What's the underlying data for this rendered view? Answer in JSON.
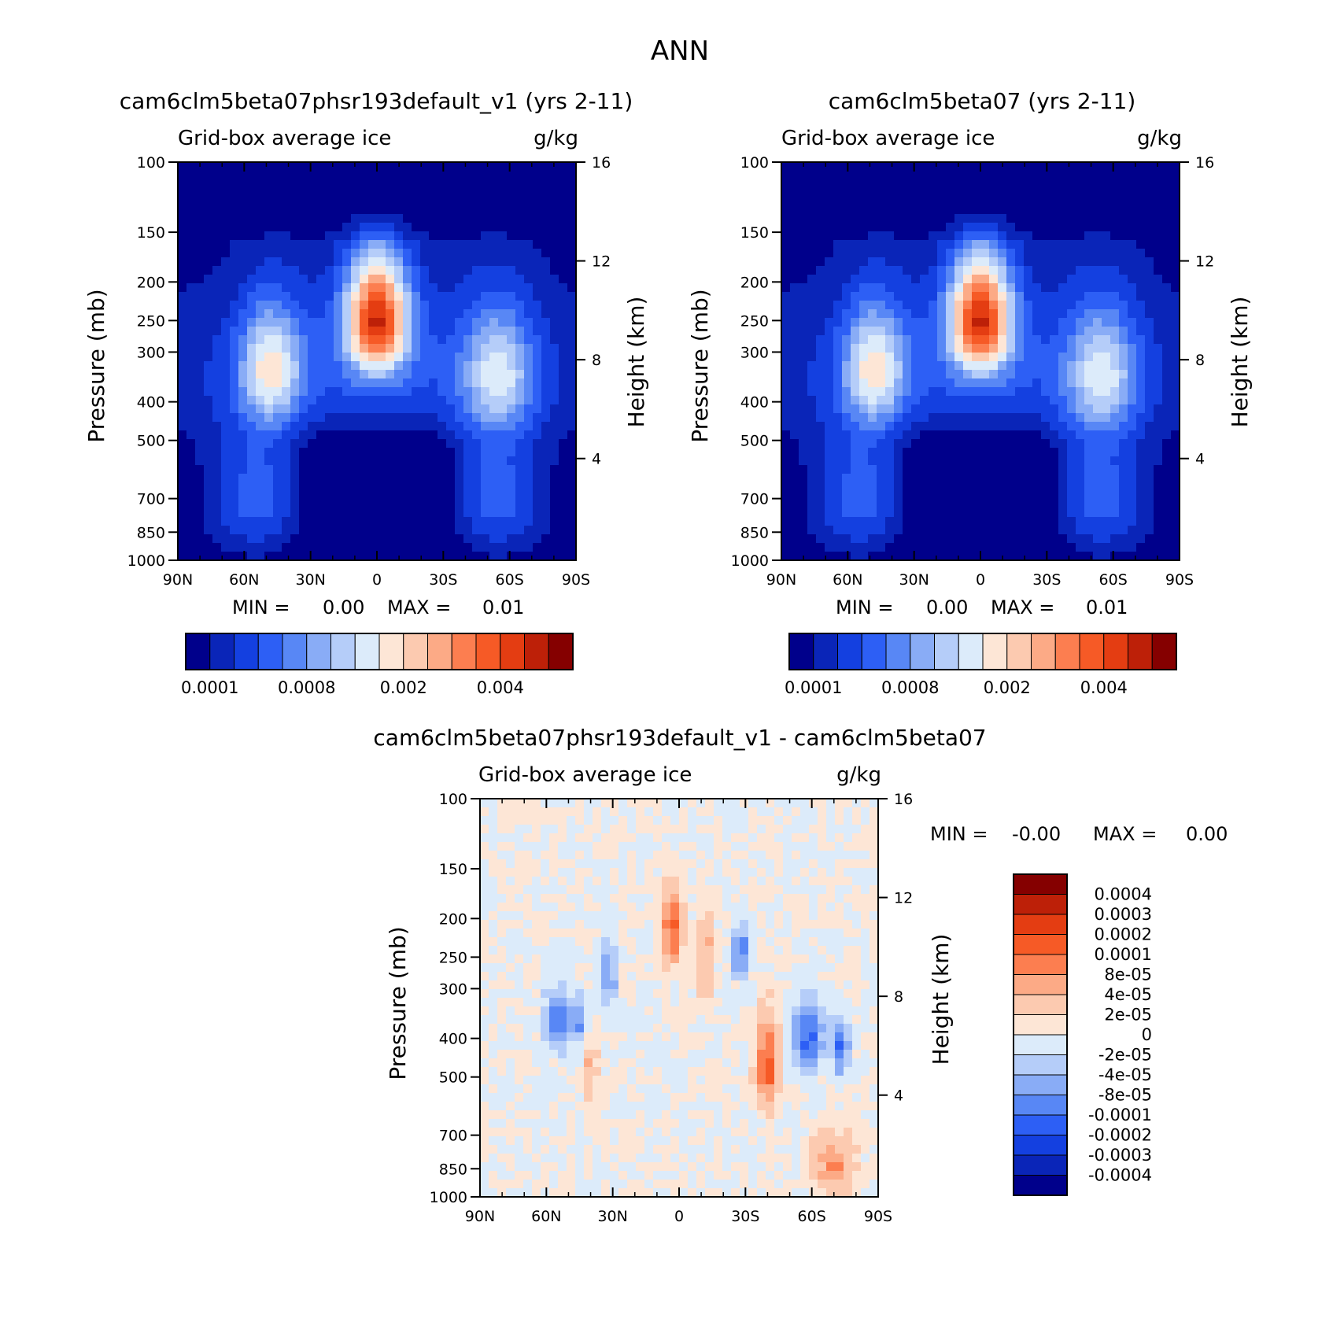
{
  "figure": {
    "title": "ANN"
  },
  "panels": {
    "test": {
      "title": "cam6clm5beta07phsr193default_v1 (yrs 2-11)",
      "variable": "Grid-box average ice",
      "units": "g/kg",
      "ylabel": "Pressure (mb)",
      "ylabel2": "Height (km)",
      "min_label": "MIN =",
      "min_value": "0.00",
      "max_label": "MAX =",
      "max_value": "0.01"
    },
    "ctrl": {
      "title": "cam6clm5beta07 (yrs 2-11)",
      "variable": "Grid-box average ice",
      "units": "g/kg",
      "ylabel": "Pressure (mb)",
      "ylabel2": "Height (km)",
      "min_label": "MIN =",
      "min_value": "0.00",
      "max_label": "MAX =",
      "max_value": "0.01"
    },
    "diff": {
      "title": "cam6clm5beta07phsr193default_v1 - cam6clm5beta07",
      "variable": "Grid-box average ice",
      "units": "g/kg",
      "ylabel": "Pressure (mb)",
      "ylabel2": "Height (km)",
      "min_label": "MIN =",
      "min_value": "-0.00",
      "max_label": "MAX =",
      "max_value": "0.00"
    }
  },
  "chart_data": [
    {
      "type": "contour",
      "panel": "test",
      "title": "cam6clm5beta07phsr193default_v1 (yrs 2-11)",
      "x_ticks": [
        "90N",
        "60N",
        "30N",
        "0",
        "30S",
        "60S",
        "90S"
      ],
      "x_values": [
        90,
        60,
        30,
        0,
        -30,
        -60,
        -90
      ],
      "y_ticks": [
        "100",
        "150",
        "200",
        "250",
        "300",
        "400",
        "500",
        "700",
        "850",
        "1000"
      ],
      "y_values": [
        100,
        150,
        200,
        250,
        300,
        400,
        500,
        700,
        850,
        1000
      ],
      "y2_ticks": [
        "16",
        "12",
        "8",
        "4"
      ],
      "y2_values": [
        16,
        12,
        8,
        4
      ],
      "colorbar_labels": [
        "0.0001",
        "0.0008",
        "0.002",
        "0.004"
      ],
      "colors": [
        "#00008b",
        "#0a25b8",
        "#1440e0",
        "#2d5ff5",
        "#5887f5",
        "#89acf6",
        "#b5cdf9",
        "#dcebfa",
        "#fde6d6",
        "#fccab0",
        "#fcaa86",
        "#fc7e50",
        "#f65a26",
        "#e43d12",
        "#bd2008",
        "#850000"
      ],
      "blobs": [
        {
          "lat": 0,
          "p": 245,
          "sx": 14,
          "sy": 85,
          "v": 0.75
        },
        {
          "lat": 48,
          "p": 330,
          "sx": 14,
          "sy": 110,
          "v": 0.38
        },
        {
          "lat": -55,
          "p": 340,
          "sx": 16,
          "sy": 120,
          "v": 0.32
        }
      ]
    },
    {
      "type": "contour",
      "panel": "ctrl",
      "title": "cam6clm5beta07 (yrs 2-11)",
      "x_ticks": [
        "90N",
        "60N",
        "30N",
        "0",
        "30S",
        "60S",
        "90S"
      ],
      "x_values": [
        90,
        60,
        30,
        0,
        -30,
        -60,
        -90
      ],
      "y_ticks": [
        "100",
        "150",
        "200",
        "250",
        "300",
        "400",
        "500",
        "700",
        "850",
        "1000"
      ],
      "y_values": [
        100,
        150,
        200,
        250,
        300,
        400,
        500,
        700,
        850,
        1000
      ],
      "y2_ticks": [
        "16",
        "12",
        "8",
        "4"
      ],
      "y2_values": [
        16,
        12,
        8,
        4
      ],
      "colorbar_labels": [
        "0.0001",
        "0.0008",
        "0.002",
        "0.004"
      ],
      "colors": [
        "#00008b",
        "#0a25b8",
        "#1440e0",
        "#2d5ff5",
        "#5887f5",
        "#89acf6",
        "#b5cdf9",
        "#dcebfa",
        "#fde6d6",
        "#fccab0",
        "#fcaa86",
        "#fc7e50",
        "#f65a26",
        "#e43d12",
        "#bd2008",
        "#850000"
      ],
      "blobs": [
        {
          "lat": 0,
          "p": 245,
          "sx": 14,
          "sy": 85,
          "v": 0.75
        },
        {
          "lat": 48,
          "p": 330,
          "sx": 14,
          "sy": 110,
          "v": 0.38
        },
        {
          "lat": -55,
          "p": 340,
          "sx": 16,
          "sy": 120,
          "v": 0.32
        }
      ]
    },
    {
      "type": "contour",
      "panel": "diff",
      "title": "cam6clm5beta07phsr193default_v1 - cam6clm5beta07",
      "x_ticks": [
        "90N",
        "60N",
        "30N",
        "0",
        "30S",
        "60S",
        "90S"
      ],
      "x_values": [
        90,
        60,
        30,
        0,
        -30,
        -60,
        -90
      ],
      "y_ticks": [
        "100",
        "150",
        "200",
        "250",
        "300",
        "400",
        "500",
        "700",
        "850",
        "1000"
      ],
      "y_values": [
        100,
        150,
        200,
        250,
        300,
        400,
        500,
        700,
        850,
        1000
      ],
      "y2_ticks": [
        "16",
        "12",
        "8",
        "4"
      ],
      "y2_values": [
        16,
        12,
        8,
        4
      ],
      "colorbar_labels": [
        "0.0004",
        "0.0003",
        "0.0002",
        "0.0001",
        "8e-05",
        "4e-05",
        "2e-05",
        "0",
        "-2e-05",
        "-4e-05",
        "-8e-05",
        "-0.0001",
        "-0.0002",
        "-0.0003",
        "-0.0004"
      ],
      "colors": [
        "#850000",
        "#bd2008",
        "#e43d12",
        "#f65a26",
        "#fc7e50",
        "#fcaa86",
        "#fccab0",
        "#fde6d6",
        "#dcebfa",
        "#b5cdf9",
        "#89acf6",
        "#5887f5",
        "#2d5ff5",
        "#1440e0",
        "#0a25b8",
        "#00008b"
      ],
      "blobs": [
        {
          "lat": 55,
          "p": 360,
          "sx": 6,
          "sy": 60,
          "v": -0.5
        },
        {
          "lat": 45,
          "p": 370,
          "sx": 4,
          "sy": 50,
          "v": -0.4
        },
        {
          "lat": 32,
          "p": 280,
          "sx": 4,
          "sy": 60,
          "v": -0.35
        },
        {
          "lat": -28,
          "p": 240,
          "sx": 4,
          "sy": 40,
          "v": -0.45
        },
        {
          "lat": -58,
          "p": 400,
          "sx": 7,
          "sy": 80,
          "v": -0.55
        },
        {
          "lat": -73,
          "p": 420,
          "sx": 4,
          "sy": 70,
          "v": -0.5
        },
        {
          "lat": 40,
          "p": 470,
          "sx": 4,
          "sy": 100,
          "v": 0.25
        },
        {
          "lat": 3,
          "p": 210,
          "sx": 5,
          "sy": 50,
          "v": 0.5
        },
        {
          "lat": -12,
          "p": 250,
          "sx": 4,
          "sy": 70,
          "v": 0.3
        },
        {
          "lat": -40,
          "p": 470,
          "sx": 5,
          "sy": 120,
          "v": 0.6
        },
        {
          "lat": -70,
          "p": 820,
          "sx": 10,
          "sy": 160,
          "v": 0.35
        }
      ]
    }
  ]
}
